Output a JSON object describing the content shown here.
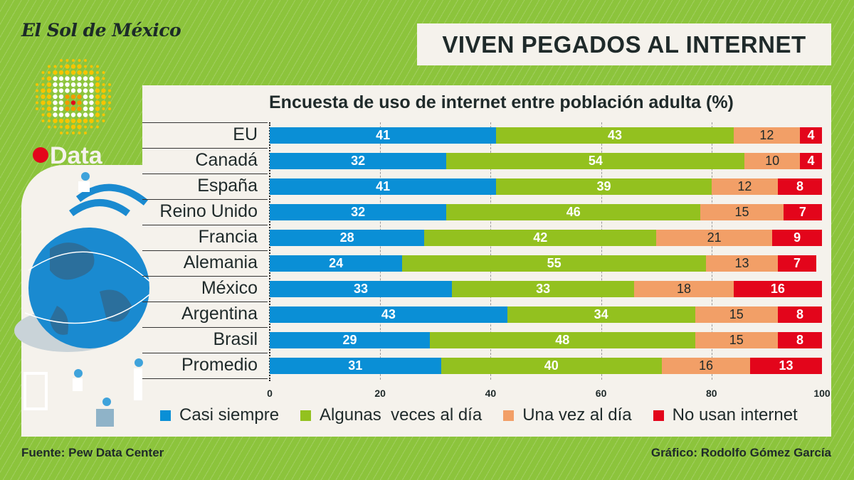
{
  "brand": {
    "logo": "El Sol de México",
    "badge": "Data"
  },
  "title": "VIVEN PEGADOS AL INTERNET",
  "footer": {
    "source": "Fuente: Pew Data Center",
    "credit": "Gráfico: Rodolfo Gómez García"
  },
  "chart_data": {
    "type": "bar",
    "orientation": "horizontal",
    "stacked": true,
    "title": "Encuesta de uso de internet entre población adulta (%)",
    "categories": [
      "EU",
      "Canadá",
      "España",
      "Reino Unido",
      "Francia",
      "Alemania",
      "México",
      "Argentina",
      "Brasil",
      "Promedio"
    ],
    "series": [
      {
        "name": "Casi siempre",
        "color": "#0a8fd6",
        "values": [
          41,
          32,
          41,
          32,
          28,
          24,
          33,
          43,
          29,
          31
        ]
      },
      {
        "name": "Algunas  veces al día",
        "color": "#93c11f",
        "values": [
          43,
          54,
          39,
          46,
          42,
          55,
          33,
          34,
          48,
          40
        ]
      },
      {
        "name": "Una vez al día",
        "color": "#f29f67",
        "values": [
          12,
          10,
          12,
          15,
          21,
          13,
          18,
          15,
          15,
          16
        ]
      },
      {
        "name": "No usan internet",
        "color": "#e3051b",
        "values": [
          4,
          4,
          8,
          7,
          9,
          7,
          16,
          8,
          8,
          13
        ]
      }
    ],
    "xlim": [
      0,
      100
    ],
    "xticks": [
      "0",
      "20",
      "40",
      "60",
      "80",
      "100"
    ],
    "grid": true,
    "legend": "bottom"
  }
}
